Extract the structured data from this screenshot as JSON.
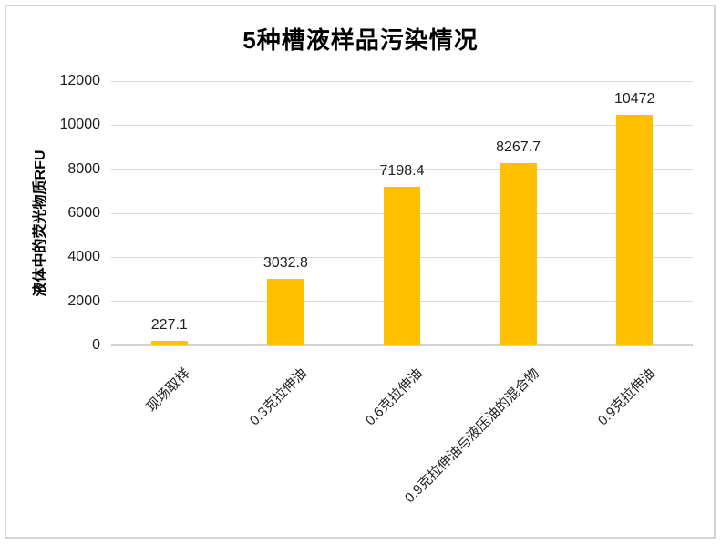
{
  "chart_data": {
    "type": "bar",
    "title": "5种槽液样品污染情况",
    "categories": [
      "现场取样",
      "0.3克拉伸油",
      "0.6克拉伸油",
      "0.9克拉伸油与液压油的混合物",
      "0.9克拉伸油"
    ],
    "values": [
      227.1,
      3032.8,
      7198.4,
      8267.7,
      10472
    ],
    "value_labels": [
      "227.1",
      "3032.8",
      "7198.4",
      "8267.7",
      "10472"
    ],
    "xlabel": "",
    "ylabel": "液体中的荧光物质RFU",
    "ylim": [
      0,
      12000
    ],
    "y_ticks": [
      0,
      2000,
      4000,
      6000,
      8000,
      10000,
      12000
    ],
    "grid": true,
    "legend": false,
    "bar_color": "#FFC000",
    "gridline_color": "#D9D9D9",
    "axis_line_color": "#D2D2D2",
    "frame_border_color": "#D4D4D4",
    "text_color": "#1F1F1F"
  }
}
